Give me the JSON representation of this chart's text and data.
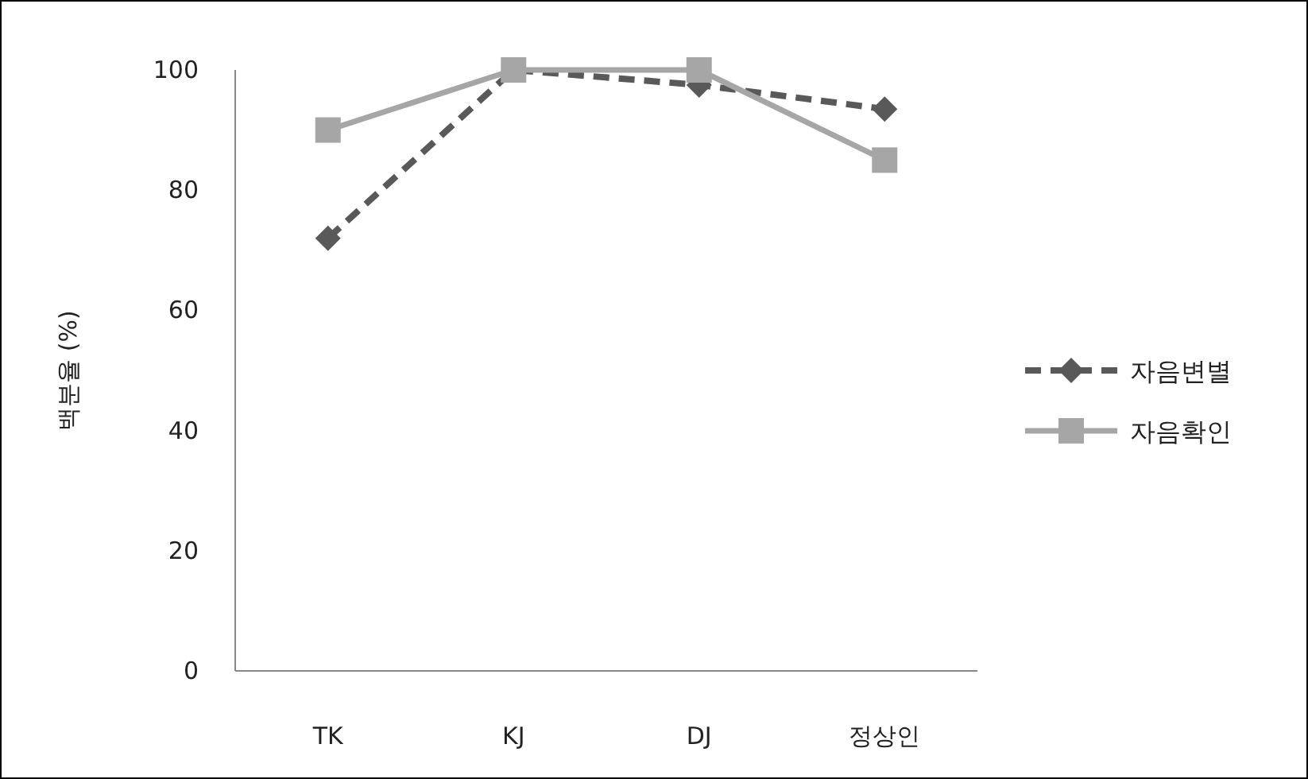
{
  "chart_data": {
    "type": "line",
    "ylabel": "백분율 (%)",
    "categories": [
      "TK",
      "KJ",
      "DJ",
      "정상인"
    ],
    "series": [
      {
        "name": "자음변별",
        "color": "#595959",
        "values": [
          72,
          100,
          97.5,
          93.5
        ],
        "marker": "diamond",
        "line_style": "dashed"
      },
      {
        "name": "자음확인",
        "color": "#a6a6a6",
        "values": [
          90,
          100,
          100,
          85
        ],
        "marker": "square",
        "line_style": "solid"
      }
    ],
    "ylim": [
      0,
      100
    ],
    "yticks": [
      0,
      20,
      40,
      60,
      80,
      100
    ],
    "grid": false,
    "legend": "right"
  }
}
